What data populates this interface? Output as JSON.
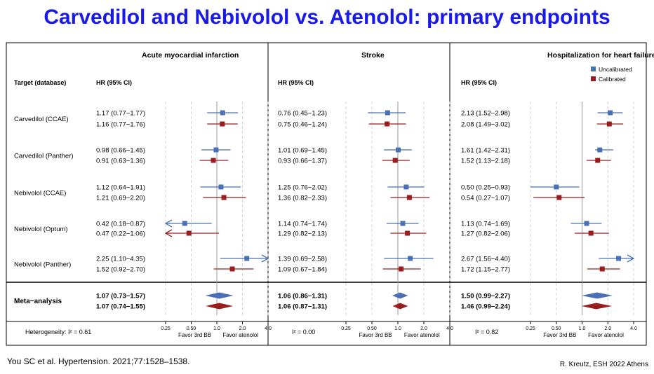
{
  "slide": {
    "title": "Carvedilol and Nebivolol vs. Atenolol: primary endpoints",
    "citation": "You SC et al. Hypertension. 2021;77:1528–1538.",
    "credit": "R. Kreutz, ESH 2022 Athens"
  },
  "labels": {
    "target_header": "Target (database)",
    "hr_header": "HR (95% CI)",
    "favor_left": "Favor 3rd BB",
    "favor_right": "Favor atenolol"
  },
  "legend": [
    {
      "name": "Uncalibrated",
      "color": "#4a6fb5"
    },
    {
      "name": "Calibrated",
      "color": "#9b1c1c"
    }
  ],
  "targets": [
    "Carvedilol (CCAE)",
    "Carvedilol (Panther)",
    "Nebivolol (CCAE)",
    "Nebivolol (Optum)",
    "Nebivolol (Panther)"
  ],
  "meta_label": "Meta−analysis",
  "chart_data": {
    "type": "forest",
    "x_scale": "log",
    "xlim": [
      0.25,
      4.0
    ],
    "ticks": [
      "0.25",
      "0.50",
      "1.0",
      "2.0",
      "4.0"
    ],
    "panels": [
      {
        "title": "Acute myocardial infarction",
        "heterogeneity": "Heterogeneity: I² = 0.61",
        "rows": [
          {
            "u": {
              "hr": 1.17,
              "lo": 0.77,
              "hi": 1.77,
              "text": "1.17 (0.77−1.77)"
            },
            "c": {
              "hr": 1.16,
              "lo": 0.77,
              "hi": 1.76,
              "text": "1.16 (0.77−1.76)"
            }
          },
          {
            "u": {
              "hr": 0.98,
              "lo": 0.66,
              "hi": 1.45,
              "text": "0.98 (0.66−1.45)"
            },
            "c": {
              "hr": 0.91,
              "lo": 0.63,
              "hi": 1.36,
              "text": "0.91 (0.63−1.36)"
            }
          },
          {
            "u": {
              "hr": 1.12,
              "lo": 0.64,
              "hi": 1.91,
              "text": "1.12 (0.64−1.91)"
            },
            "c": {
              "hr": 1.21,
              "lo": 0.69,
              "hi": 2.2,
              "text": "1.21 (0.69−2.20)"
            }
          },
          {
            "u": {
              "hr": 0.42,
              "lo": 0.18,
              "hi": 0.87,
              "text": "0.42 (0.18−0.87)"
            },
            "c": {
              "hr": 0.47,
              "lo": 0.22,
              "hi": 1.06,
              "text": "0.47 (0.22−1.06)"
            }
          },
          {
            "u": {
              "hr": 2.25,
              "lo": 1.1,
              "hi": 4.35,
              "text": "2.25 (1.10−4.35)"
            },
            "c": {
              "hr": 1.52,
              "lo": 0.92,
              "hi": 2.7,
              "text": "1.52 (0.92−2.70)"
            }
          }
        ],
        "meta": {
          "u": {
            "hr": 1.07,
            "lo": 0.73,
            "hi": 1.57,
            "text": "1.07 (0.73−1.57)"
          },
          "c": {
            "hr": 1.07,
            "lo": 0.74,
            "hi": 1.55,
            "text": "1.07 (0.74−1.55)"
          }
        }
      },
      {
        "title": "Stroke",
        "heterogeneity": "I² = 0.00",
        "rows": [
          {
            "u": {
              "hr": 0.76,
              "lo": 0.45,
              "hi": 1.23,
              "text": "0.76 (0.45−1.23)"
            },
            "c": {
              "hr": 0.75,
              "lo": 0.46,
              "hi": 1.24,
              "text": "0.75 (0.46−1.24)"
            }
          },
          {
            "u": {
              "hr": 1.01,
              "lo": 0.69,
              "hi": 1.45,
              "text": "1.01 (0.69−1.45)"
            },
            "c": {
              "hr": 0.93,
              "lo": 0.66,
              "hi": 1.37,
              "text": "0.93 (0.66−1.37)"
            }
          },
          {
            "u": {
              "hr": 1.25,
              "lo": 0.76,
              "hi": 2.02,
              "text": "1.25 (0.76−2.02)"
            },
            "c": {
              "hr": 1.36,
              "lo": 0.82,
              "hi": 2.33,
              "text": "1.36 (0.82−2.33)"
            }
          },
          {
            "u": {
              "hr": 1.14,
              "lo": 0.74,
              "hi": 1.74,
              "text": "1.14 (0.74−1.74)"
            },
            "c": {
              "hr": 1.29,
              "lo": 0.82,
              "hi": 2.13,
              "text": "1.29 (0.82−2.13)"
            }
          },
          {
            "u": {
              "hr": 1.39,
              "lo": 0.69,
              "hi": 2.58,
              "text": "1.39 (0.69−2.58)"
            },
            "c": {
              "hr": 1.09,
              "lo": 0.67,
              "hi": 1.84,
              "text": "1.09 (0.67−1.84)"
            }
          }
        ],
        "meta": {
          "u": {
            "hr": 1.06,
            "lo": 0.86,
            "hi": 1.31,
            "text": "1.06 (0.86−1.31)"
          },
          "c": {
            "hr": 1.06,
            "lo": 0.87,
            "hi": 1.31,
            "text": "1.06 (0.87−1.31)"
          }
        }
      },
      {
        "title": "Hospitalization for heart failure",
        "heterogeneity": "I² = 0.82",
        "rows": [
          {
            "u": {
              "hr": 2.13,
              "lo": 1.52,
              "hi": 2.98,
              "text": "2.13 (1.52−2.98)"
            },
            "c": {
              "hr": 2.08,
              "lo": 1.49,
              "hi": 3.02,
              "text": "2.08 (1.49−3.02)"
            }
          },
          {
            "u": {
              "hr": 1.61,
              "lo": 1.42,
              "hi": 2.31,
              "text": "1.61 (1.42−2.31)"
            },
            "c": {
              "hr": 1.52,
              "lo": 1.13,
              "hi": 2.18,
              "text": "1.52 (1.13−2.18)"
            }
          },
          {
            "u": {
              "hr": 0.5,
              "lo": 0.25,
              "hi": 0.93,
              "text": "0.50 (0.25−0.93)"
            },
            "c": {
              "hr": 0.54,
              "lo": 0.27,
              "hi": 1.07,
              "text": "0.54 (0.27−1.07)"
            }
          },
          {
            "u": {
              "hr": 1.13,
              "lo": 0.74,
              "hi": 1.69,
              "text": "1.13 (0.74−1.69)"
            },
            "c": {
              "hr": 1.27,
              "lo": 0.82,
              "hi": 2.06,
              "text": "1.27 (0.82−2.06)"
            }
          },
          {
            "u": {
              "hr": 2.67,
              "lo": 1.56,
              "hi": 4.4,
              "text": "2.67 (1.56−4.40)"
            },
            "c": {
              "hr": 1.72,
              "lo": 1.15,
              "hi": 2.77,
              "text": "1.72 (1.15−2.77)"
            }
          }
        ],
        "meta": {
          "u": {
            "hr": 1.5,
            "lo": 0.99,
            "hi": 2.27,
            "text": "1.50 (0.99−2.27)"
          },
          "c": {
            "hr": 1.46,
            "lo": 0.99,
            "hi": 2.24,
            "text": "1.46 (0.99−2.24)"
          }
        }
      }
    ]
  }
}
